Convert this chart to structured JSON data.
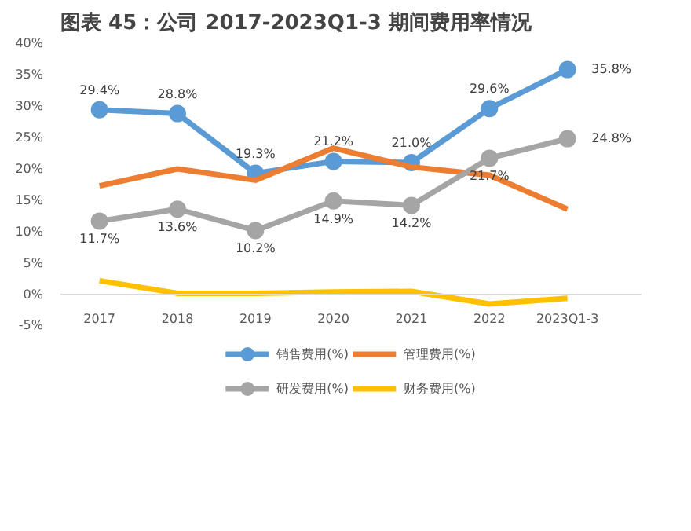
{
  "chart_data": {
    "type": "line",
    "title": "图表 45：公司 2017-2023Q1-3 期间费用率情况",
    "categories": [
      "2017",
      "2018",
      "2019",
      "2020",
      "2021",
      "2022",
      "2023Q1-3"
    ],
    "ylim": [
      -5,
      40
    ],
    "yticks": [
      {
        "value": -5,
        "label": "-5%"
      },
      {
        "value": 0,
        "label": "0%"
      },
      {
        "value": 5,
        "label": "5%"
      },
      {
        "value": 10,
        "label": "10%"
      },
      {
        "value": 15,
        "label": "15%"
      },
      {
        "value": 20,
        "label": "20%"
      },
      {
        "value": 25,
        "label": "25%"
      },
      {
        "value": 30,
        "label": "30%"
      },
      {
        "value": 35,
        "label": "35%"
      },
      {
        "value": 40,
        "label": "40%"
      }
    ],
    "grid": false,
    "legend": "bottom",
    "series": [
      {
        "name": "销售费用(%)",
        "color": "#5b9bd5",
        "marker": "circle",
        "values": [
          29.4,
          28.8,
          19.3,
          21.2,
          21.0,
          29.6,
          35.8
        ],
        "value_labels": [
          "29.4%",
          "28.8%",
          "19.3%",
          "21.2%",
          "21.0%",
          "29.6%",
          "35.8%"
        ]
      },
      {
        "name": "管理费用(%)",
        "color": "#ed7d31",
        "marker": "none",
        "values": [
          17.3,
          20.0,
          18.2,
          23.3,
          20.3,
          19.0,
          13.6
        ]
      },
      {
        "name": "研发费用(%)",
        "color": "#a5a5a5",
        "marker": "circle",
        "values": [
          11.7,
          13.6,
          10.2,
          14.9,
          14.2,
          21.7,
          24.8
        ],
        "value_labels": [
          "11.7%",
          "13.6%",
          "10.2%",
          "14.9%",
          "14.2%",
          "21.7%",
          "24.8%"
        ]
      },
      {
        "name": "财务费用(%)",
        "color": "#ffc000",
        "marker": "none",
        "values": [
          2.2,
          0.2,
          0.2,
          0.4,
          0.5,
          -1.5,
          -0.6
        ]
      }
    ]
  }
}
